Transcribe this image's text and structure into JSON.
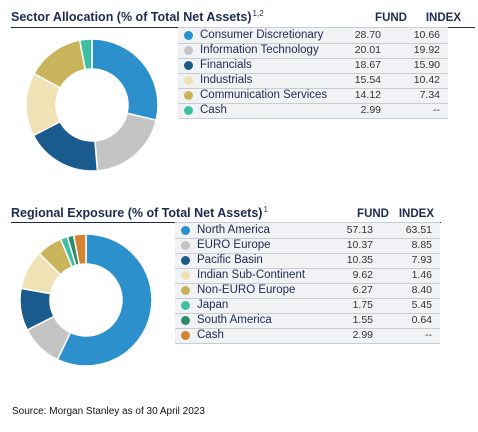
{
  "chart_data": [
    {
      "type": "pie",
      "title": "Sector Allocation (% of Total Net Assets)",
      "title_superscript": "1,2",
      "columns": [
        "FUND",
        "INDEX"
      ],
      "categories": [
        "Consumer Discretionary",
        "Information Technology",
        "Financials",
        "Industrials",
        "Communication Services",
        "Cash"
      ],
      "colors": [
        "#2b90cc",
        "#c4c4c4",
        "#1b5a8c",
        "#efe2b4",
        "#c9b35b",
        "#3ebfa1"
      ],
      "fund": [
        28.7,
        20.01,
        18.67,
        15.54,
        14.12,
        2.99
      ],
      "fund_text": [
        "28.70",
        "20.01",
        "18.67",
        "15.54",
        "14.12",
        "2.99"
      ],
      "index_text": [
        "10.66",
        "19.92",
        "15.90",
        "10.42",
        "7.34",
        "--"
      ]
    },
    {
      "type": "pie",
      "title": "Regional Exposure (% of Total Net Assets)",
      "title_superscript": "1",
      "columns": [
        "FUND",
        "INDEX"
      ],
      "categories": [
        "North America",
        "EURO Europe",
        "Pacific Basin",
        "Indian Sub-Continent",
        "Non-EURO Europe",
        "Japan",
        "South America",
        "Cash"
      ],
      "colors": [
        "#2b90cc",
        "#c4c4c4",
        "#1b5a8c",
        "#efe2b4",
        "#c9b35b",
        "#3ebfa1",
        "#2f8a6a",
        "#d4842f"
      ],
      "fund": [
        57.13,
        10.37,
        10.35,
        9.62,
        6.27,
        1.75,
        1.55,
        2.99
      ],
      "fund_text": [
        "57.13",
        "10.37",
        "10.35",
        "9.62",
        "6.27",
        "1.75",
        "1.55",
        "2.99"
      ],
      "index_text": [
        "63.51",
        "8.85",
        "7.93",
        "1.46",
        "8.40",
        "5.45",
        "0.64",
        "--"
      ]
    }
  ],
  "source": "Source: Morgan Stanley as of 30 April 2023"
}
